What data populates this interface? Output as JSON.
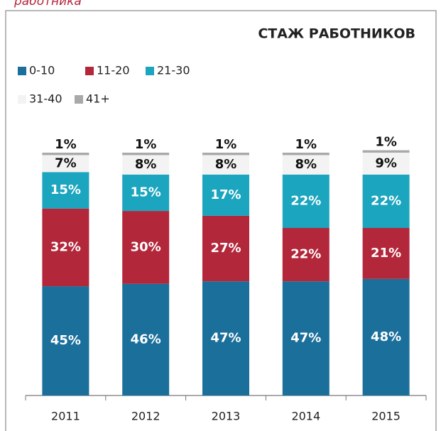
{
  "chart_data": {
    "type": "stacked_bar",
    "title": "СТАЖ РАБОТНИКОВ",
    "annotations": [
      "работника"
    ],
    "categories": [
      "2011",
      "2012",
      "2013",
      "2014",
      "2015"
    ],
    "series": [
      {
        "name": "0-10",
        "color": "#1b6f9b",
        "label_color": "#ffffff",
        "values": [
          45,
          46,
          47,
          47,
          48
        ],
        "value_labels": [
          "45%",
          "46%",
          "47%",
          "47%",
          "48%"
        ]
      },
      {
        "name": "11-20",
        "color": "#b3273b",
        "label_color": "#ffffff",
        "values": [
          32,
          30,
          27,
          22,
          21
        ],
        "value_labels": [
          "32%",
          "30%",
          "27%",
          "22%",
          "21%"
        ]
      },
      {
        "name": "21-30",
        "color": "#1ca5be",
        "label_color": "#ffffff",
        "values": [
          15,
          15,
          17,
          22,
          22
        ],
        "value_labels": [
          "15%",
          "15%",
          "17%",
          "22%",
          "22%"
        ]
      },
      {
        "name": "31-40",
        "color": "#f3f3f3",
        "label_color": "#111111",
        "values": [
          7,
          8,
          8,
          8,
          9
        ],
        "value_labels": [
          "7%",
          "8%",
          "8%",
          "8%",
          "9%"
        ]
      },
      {
        "name": "41+",
        "color": "#a9a9a9",
        "label_color": "#111111",
        "values": [
          1,
          1,
          1,
          1,
          1
        ],
        "value_labels": [
          "1%",
          "1%",
          "1%",
          "1%",
          "1%"
        ]
      }
    ]
  }
}
